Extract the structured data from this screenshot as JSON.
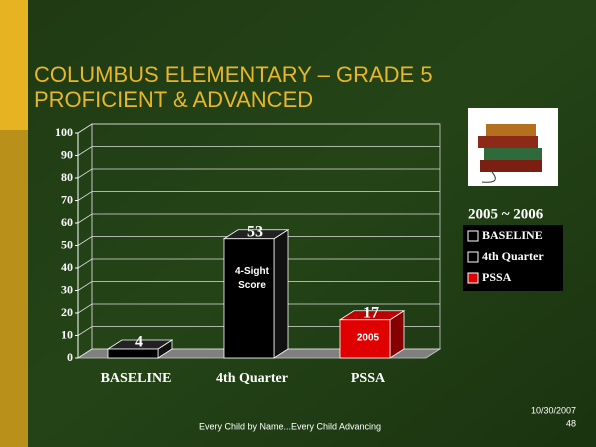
{
  "chart_data": {
    "type": "bar3d",
    "title": "COLUMBUS ELEMENTARY – GRADE 5",
    "subtitle": "PROFICIENT & ADVANCED",
    "categories": [
      "BASELINE",
      "4th Quarter",
      "PSSA"
    ],
    "values": [
      4,
      53,
      17
    ],
    "colors": [
      "#000000",
      "#000000",
      "#e00000"
    ],
    "annotations": [
      null,
      "4-Sight Score",
      "2005"
    ],
    "ylim": [
      0,
      100
    ],
    "yticks": [
      0,
      10,
      20,
      30,
      40,
      50,
      60,
      70,
      80,
      90,
      100
    ],
    "grid": true,
    "legend_title": "2005 ~ 2006",
    "legend": "right"
  },
  "footer": {
    "text": "Every Child by Name...Every Child Advancing",
    "date": "10/30/2007",
    "page": "48"
  }
}
